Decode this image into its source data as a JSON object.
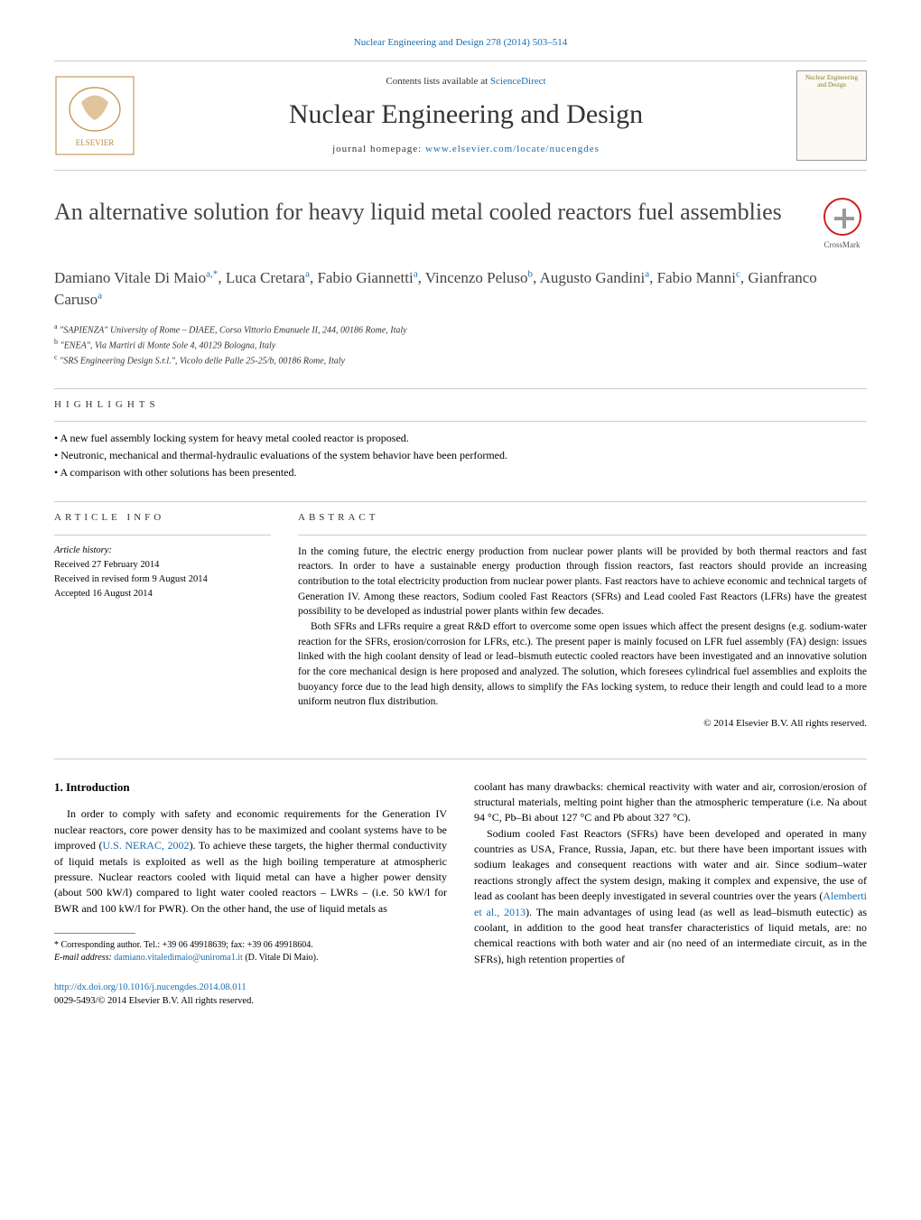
{
  "top_header_link": "Nuclear Engineering and Design 278 (2014) 503–514",
  "contents_prefix": "Contents lists available at ",
  "contents_link": "ScienceDirect",
  "journal_name": "Nuclear Engineering and Design",
  "homepage_prefix": "journal homepage: ",
  "homepage_url": "www.elsevier.com/locate/nucengdes",
  "cover_label": "Nuclear Engineering and Design",
  "crossmark_label": "CrossMark",
  "title": "An alternative solution for heavy liquid metal cooled reactors fuel assemblies",
  "authors_html_parts": [
    {
      "name": "Damiano Vitale Di Maio",
      "sup": "a,*"
    },
    {
      "name": "Luca Cretara",
      "sup": "a"
    },
    {
      "name": "Fabio Giannetti",
      "sup": "a"
    },
    {
      "name": "Vincenzo Peluso",
      "sup": "b"
    },
    {
      "name": "Augusto Gandini",
      "sup": "a"
    },
    {
      "name": "Fabio Manni",
      "sup": "c"
    },
    {
      "name": "Gianfranco Caruso",
      "sup": "a"
    }
  ],
  "affiliations": [
    {
      "sup": "a",
      "text": "\"SAPIENZA\" University of Rome – DIAEE, Corso Vittorio Emanuele II, 244, 00186 Rome, Italy"
    },
    {
      "sup": "b",
      "text": "\"ENEA\", Via Martiri di Monte Sole 4, 40129 Bologna, Italy"
    },
    {
      "sup": "c",
      "text": "\"SRS Engineering Design S.r.l.\", Vicolo delle Palle 25-25/b, 00186 Rome, Italy"
    }
  ],
  "highlights_label": "highlights",
  "highlights": [
    "A new fuel assembly locking system for heavy metal cooled reactor is proposed.",
    "Neutronic, mechanical and thermal-hydraulic evaluations of the system behavior have been performed.",
    "A comparison with other solutions has been presented."
  ],
  "article_info_label": "article info",
  "article_history_label": "Article history:",
  "article_history": [
    "Received 27 February 2014",
    "Received in revised form 9 August 2014",
    "Accepted 16 August 2014"
  ],
  "abstract_label": "abstract",
  "abstract_paragraphs": [
    "In the coming future, the electric energy production from nuclear power plants will be provided by both thermal reactors and fast reactors. In order to have a sustainable energy production through fission reactors, fast reactors should provide an increasing contribution to the total electricity production from nuclear power plants. Fast reactors have to achieve economic and technical targets of Generation IV. Among these reactors, Sodium cooled Fast Reactors (SFRs) and Lead cooled Fast Reactors (LFRs) have the greatest possibility to be developed as industrial power plants within few decades.",
    "Both SFRs and LFRs require a great R&D effort to overcome some open issues which affect the present designs (e.g. sodium-water reaction for the SFRs, erosion/corrosion for LFRs, etc.). The present paper is mainly focused on LFR fuel assembly (FA) design: issues linked with the high coolant density of lead or lead–bismuth eutectic cooled reactors have been investigated and an innovative solution for the core mechanical design is here proposed and analyzed. The solution, which foresees cylindrical fuel assemblies and exploits the buoyancy force due to the lead high density, allows to simplify the FAs locking system, to reduce their length and could lead to a more uniform neutron flux distribution."
  ],
  "copyright": "© 2014 Elsevier B.V. All rights reserved.",
  "intro_heading": "1.  Introduction",
  "intro_col1": "In order to comply with safety and economic requirements for the Generation IV nuclear reactors, core power density has to be maximized and coolant systems have to be improved (U.S. NERAC, 2002). To achieve these targets, the higher thermal conductivity of liquid metals is exploited as well as the high boiling temperature at atmospheric pressure. Nuclear reactors cooled with liquid metal can have a higher power density (about 500 kW/l) compared to light water cooled reactors – LWRs – (i.e. 50 kW/l for BWR and 100 kW/l for PWR). On the other hand, the use of liquid metals as",
  "intro_cite1": "U.S. NERAC, 2002",
  "intro_col2": "coolant has many drawbacks: chemical reactivity with water and air, corrosion/erosion of structural materials, melting point higher than the atmospheric temperature (i.e. Na about 94 °C, Pb–Bi about 127 °C and Pb about 327 °C).",
  "intro_col2_p2": "Sodium cooled Fast Reactors (SFRs) have been developed and operated in many countries as USA, France, Russia, Japan, etc. but there have been important issues with sodium leakages and consequent reactions with water and air. Since sodium–water reactions strongly affect the system design, making it complex and expensive, the use of lead as coolant has been deeply investigated in several countries over the years (Alemberti et al., 2013). The main advantages of using lead (as well as lead–bismuth eutectic) as coolant, in addition to the good heat transfer characteristics of liquid metals, are: no chemical reactions with both water and air (no need of an intermediate circuit, as in the SFRs), high retention properties of",
  "intro_cite2": "Alemberti et al., 2013",
  "footnote_corresponding": "* Corresponding author. Tel.: +39 06 49918639; fax: +39 06 49918604.",
  "footnote_email_label": "E-mail address: ",
  "footnote_email": "damiano.vitaledimaio@uniroma1.it",
  "footnote_email_suffix": " (D. Vitale Di Maio).",
  "doi_url": "http://dx.doi.org/10.1016/j.nucengdes.2014.08.011",
  "issn_copyright": "0029-5493/© 2014 Elsevier B.V. All rights reserved.",
  "colors": {
    "link": "#1a6cae",
    "text": "#000000",
    "heading_gray": "#444444",
    "rule": "#cccccc"
  }
}
